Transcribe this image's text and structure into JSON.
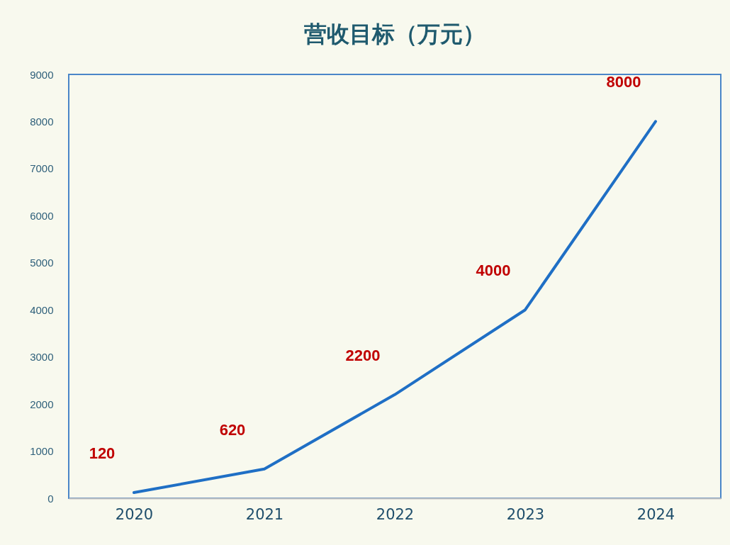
{
  "chart_data": {
    "type": "line",
    "title": "营收目标（万元）",
    "categories": [
      "2020",
      "2021",
      "2022",
      "2023",
      "2024"
    ],
    "values": [
      120,
      620,
      2200,
      4000,
      8000
    ],
    "color": "#1f6fc5",
    "ylim": [
      0,
      9000
    ],
    "yticks": [
      0,
      1000,
      2000,
      3000,
      4000,
      5000,
      6000,
      7000,
      8000,
      9000
    ],
    "grid": false,
    "data_labels": true
  }
}
